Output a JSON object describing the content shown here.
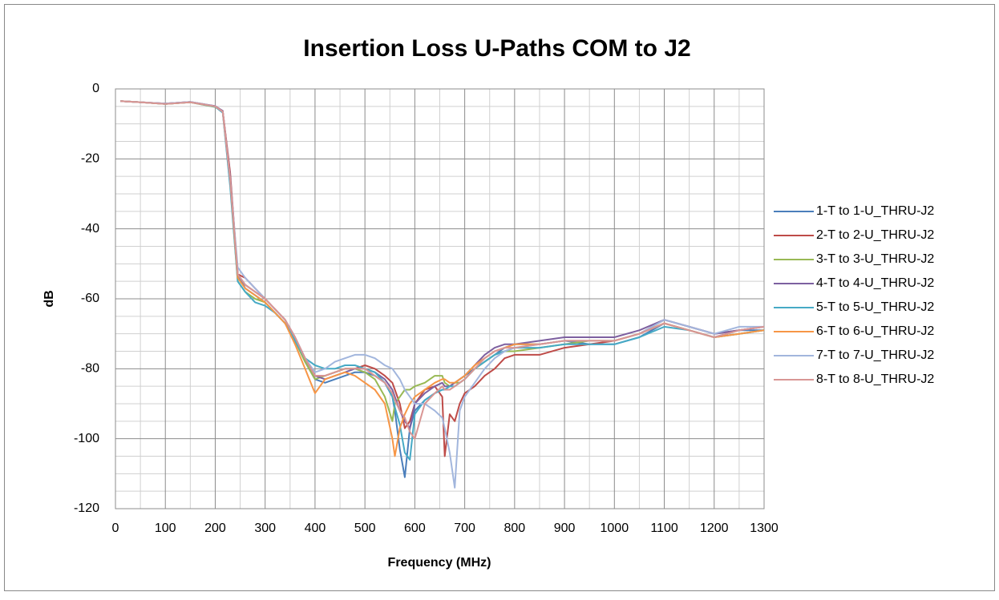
{
  "chart_data": {
    "type": "line",
    "title": "Insertion Loss U-Paths COM to J2",
    "x_label": "Frequency (MHz)",
    "y_label": "dB",
    "xlim": [
      0,
      1300
    ],
    "xticks": [
      0,
      100,
      200,
      300,
      400,
      500,
      600,
      700,
      800,
      900,
      1000,
      1100,
      1200,
      1300
    ],
    "ylim": [
      -120,
      0
    ],
    "yticks": [
      -120,
      -100,
      -80,
      -60,
      -40,
      -20,
      0
    ],
    "grid": true,
    "minor_grid": true,
    "legend": "right",
    "x": [
      10,
      50,
      100,
      150,
      200,
      215,
      230,
      245,
      260,
      280,
      300,
      320,
      340,
      360,
      380,
      400,
      420,
      440,
      460,
      480,
      500,
      520,
      540,
      555,
      560,
      570,
      580,
      590,
      600,
      620,
      640,
      655,
      660,
      670,
      680,
      690,
      700,
      720,
      740,
      760,
      780,
      800,
      850,
      900,
      950,
      1000,
      1050,
      1100,
      1150,
      1200,
      1250,
      1300
    ],
    "series": [
      {
        "name": "1-T to 1-U_THRU-J2",
        "color": "#4a7ebb",
        "values": [
          -3.5,
          -3.8,
          -4.3,
          -3.8,
          -5,
          -6.5,
          -26,
          -53,
          -57,
          -59,
          -61,
          -64,
          -67,
          -72,
          -78,
          -83,
          -84,
          -83,
          -82,
          -81,
          -81,
          -82,
          -84,
          -88,
          -92,
          -103,
          -111,
          -97,
          -92,
          -89,
          -87,
          -86,
          -86,
          -85,
          -84,
          -83,
          -82,
          -80,
          -78,
          -76,
          -74,
          -73,
          -73,
          -72,
          -73,
          -73,
          -71,
          -67,
          -69,
          -71,
          -69,
          -69
        ]
      },
      {
        "name": "2-T to 2-U_THRU-J2",
        "color": "#be4b48",
        "values": [
          -3.5,
          -3.8,
          -4.2,
          -3.7,
          -5,
          -6.3,
          -24,
          -53,
          -54,
          -57,
          -60,
          -63,
          -66,
          -71,
          -77,
          -82,
          -82,
          -81,
          -80,
          -80,
          -79,
          -80,
          -82,
          -84,
          -86,
          -90,
          -97,
          -95,
          -90,
          -86,
          -85,
          -88,
          -105,
          -93,
          -95,
          -90,
          -87,
          -85,
          -82,
          -80,
          -77,
          -76,
          -76,
          -74,
          -73,
          -72,
          -70,
          -66,
          -68,
          -70,
          -69,
          -68
        ]
      },
      {
        "name": "3-T to 3-U_THRU-J2",
        "color": "#98b954",
        "values": [
          -3.5,
          -3.8,
          -4.3,
          -3.8,
          -5.2,
          -6.6,
          -27,
          -55,
          -58,
          -60,
          -61,
          -64,
          -67,
          -72,
          -78,
          -83,
          -82,
          -81,
          -80,
          -80,
          -81,
          -83,
          -88,
          -95,
          -90,
          -88,
          -86,
          -86,
          -85,
          -84,
          -82,
          -82,
          -84,
          -85,
          -84,
          -84,
          -83,
          -80,
          -78,
          -76,
          -75,
          -75,
          -74,
          -73,
          -72,
          -72,
          -70,
          -67,
          -69,
          -71,
          -70,
          -69
        ]
      },
      {
        "name": "4-T to 4-U_THRU-J2",
        "color": "#7d60a0",
        "values": [
          -3.5,
          -3.8,
          -4.2,
          -3.7,
          -4.9,
          -6.3,
          -25,
          -53,
          -56,
          -58,
          -60,
          -63,
          -66,
          -71,
          -77,
          -82,
          -83,
          -82,
          -81,
          -80,
          -80,
          -81,
          -83,
          -86,
          -88,
          -92,
          -95,
          -97,
          -90,
          -87,
          -85,
          -84,
          -85,
          -85,
          -84,
          -83,
          -82,
          -79,
          -76,
          -74,
          -73,
          -73,
          -72,
          -71,
          -71,
          -71,
          -69,
          -66,
          -68,
          -70,
          -69,
          -68
        ]
      },
      {
        "name": "5-T to 5-U_THRU-J2",
        "color": "#46aac5",
        "values": [
          -3.5,
          -3.8,
          -4.3,
          -3.8,
          -5.1,
          -6.8,
          -28,
          -55,
          -58,
          -61,
          -62,
          -64,
          -67,
          -72,
          -77,
          -79,
          -80,
          -80,
          -79,
          -79,
          -80,
          -81,
          -84,
          -88,
          -91,
          -96,
          -104,
          -106,
          -93,
          -89,
          -87,
          -86,
          -86,
          -85,
          -85,
          -84,
          -83,
          -80,
          -78,
          -76,
          -75,
          -74,
          -74,
          -73,
          -73,
          -73,
          -71,
          -68,
          -69,
          -71,
          -70,
          -69
        ]
      },
      {
        "name": "6-T to 6-U_THRU-J2",
        "color": "#f79646",
        "values": [
          -3.5,
          -3.8,
          -4.3,
          -3.8,
          -5,
          -6.5,
          -26,
          -54,
          -57,
          -59,
          -61,
          -64,
          -67,
          -73,
          -80,
          -87,
          -83,
          -82,
          -81,
          -82,
          -84,
          -86,
          -90,
          -100,
          -105,
          -97,
          -93,
          -90,
          -88,
          -86,
          -84,
          -83,
          -83,
          -84,
          -84,
          -83,
          -82,
          -79,
          -77,
          -75,
          -74,
          -73,
          -73,
          -72,
          -72,
          -72,
          -70,
          -67,
          -69,
          -71,
          -70,
          -69
        ]
      },
      {
        "name": "7-T to 7-U_THRU-J2",
        "color": "#a2b6dd",
        "values": [
          -3.5,
          -3.8,
          -4.2,
          -3.7,
          -5,
          -6.5,
          -26,
          -51,
          -54,
          -57,
          -60,
          -63,
          -66,
          -71,
          -77,
          -81,
          -80,
          -78,
          -77,
          -76,
          -76,
          -77,
          -79,
          -80,
          -81,
          -83,
          -86,
          -88,
          -90,
          -90,
          -92,
          -94,
          -97,
          -104,
          -114,
          -92,
          -88,
          -84,
          -80,
          -77,
          -75,
          -74,
          -73,
          -72,
          -72,
          -72,
          -70,
          -66,
          -68,
          -70,
          -68,
          -68
        ]
      },
      {
        "name": "8-T to 8-U_THRU-J2",
        "color": "#d99694",
        "values": [
          -3.5,
          -3.8,
          -4.3,
          -3.8,
          -5,
          -6.5,
          -26,
          -53,
          -56,
          -58,
          -60,
          -63,
          -66,
          -71,
          -77,
          -82,
          -82,
          -81,
          -80,
          -80,
          -80,
          -82,
          -84,
          -87,
          -89,
          -92,
          -94,
          -98,
          -100,
          -90,
          -87,
          -85,
          -86,
          -86,
          -85,
          -84,
          -83,
          -80,
          -77,
          -75,
          -74,
          -74,
          -73,
          -72,
          -72,
          -72,
          -70,
          -67,
          -69,
          -71,
          -69,
          -68
        ]
      }
    ]
  }
}
